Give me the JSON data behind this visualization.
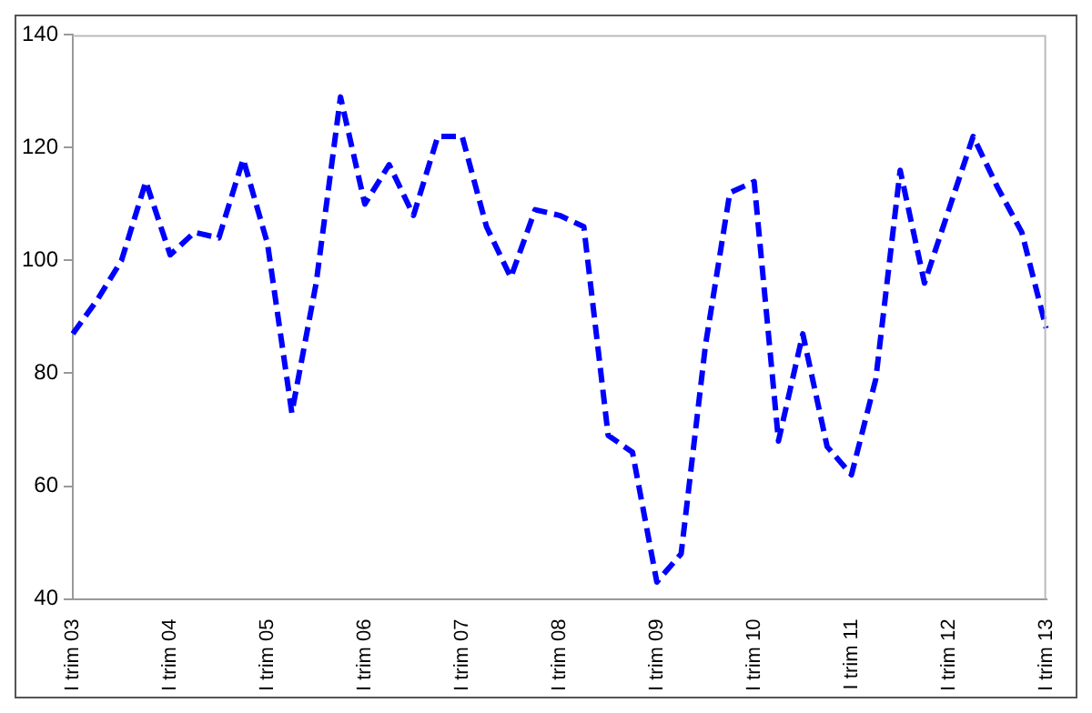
{
  "chart_data": {
    "type": "line",
    "categories": [
      "I trim 03",
      null,
      null,
      null,
      "I trim 04",
      null,
      null,
      null,
      "I trim 05",
      null,
      null,
      null,
      "I trim 06",
      null,
      null,
      null,
      "I trim 07",
      null,
      null,
      null,
      "I trim 08",
      null,
      null,
      null,
      "I trim 09",
      null,
      null,
      null,
      "I trim 10",
      null,
      null,
      null,
      "I trim 11",
      null,
      null,
      null,
      "I trim 12",
      null,
      null,
      null,
      "I trim 13"
    ],
    "series": [
      {
        "color": "#0000ff",
        "values": [
          87,
          93,
          100,
          114,
          101,
          105,
          104,
          118,
          103,
          73,
          96,
          129,
          110,
          117,
          108,
          122,
          122,
          106,
          97,
          109,
          108,
          106,
          69,
          66,
          43,
          48,
          85,
          112,
          114,
          68,
          87,
          67,
          62,
          79,
          116,
          96,
          109,
          122,
          113,
          105,
          88
        ]
      }
    ],
    "ylim": [
      40,
      140
    ],
    "yticks": [
      40,
      60,
      80,
      100,
      120,
      140
    ],
    "grid": false,
    "legend": false,
    "marker": "none",
    "line_style": "dashed"
  }
}
